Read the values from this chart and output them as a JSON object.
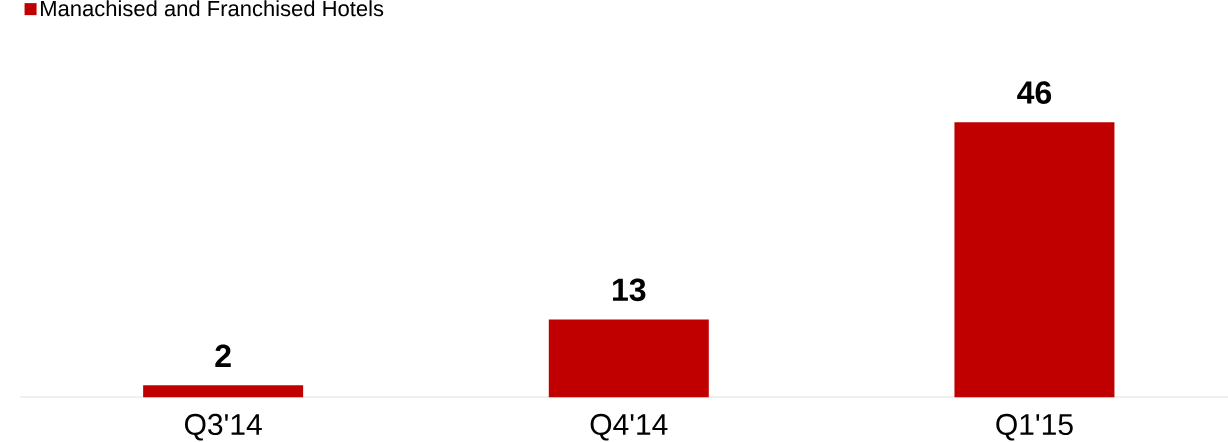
{
  "chart_data": {
    "type": "bar",
    "categories": [
      "Q3'14",
      "Q4'14",
      "Q1'15"
    ],
    "series": [
      {
        "name": "Manachised and Franchised Hotels",
        "color": "#c00000",
        "values": [
          2,
          13,
          46
        ]
      }
    ],
    "data_labels": true,
    "legend": "top left"
  }
}
